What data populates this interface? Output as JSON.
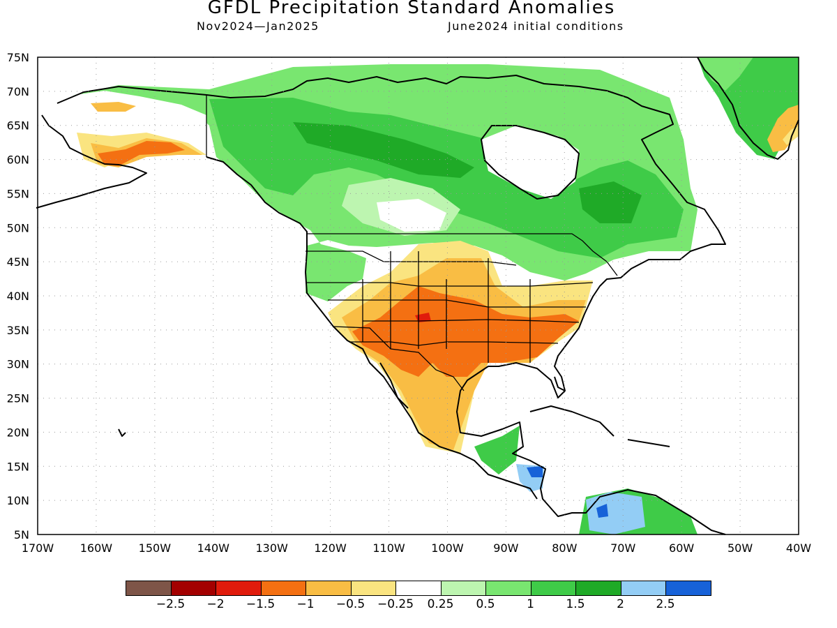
{
  "title": "GFDL Precipitation Standard Anomalies",
  "subtitle_left": "Nov2024—Jan2025",
  "subtitle_right": "June2024 initial conditions",
  "axes": {
    "lon_labels": [
      "170W",
      "160W",
      "150W",
      "140W",
      "130W",
      "120W",
      "110W",
      "100W",
      "90W",
      "80W",
      "70W",
      "60W",
      "50W",
      "40W"
    ],
    "lat_labels": [
      "75N",
      "70N",
      "65N",
      "60N",
      "55N",
      "50N",
      "45N",
      "40N",
      "35N",
      "30N",
      "25N",
      "20N",
      "15N",
      "10N",
      "5N"
    ],
    "lon_range": [
      -170,
      -40
    ],
    "lat_range": [
      5,
      75
    ],
    "grid": "dotted"
  },
  "legend": {
    "colors": [
      "#7e5548",
      "#a30000",
      "#e01b0c",
      "#f47012",
      "#f9bd44",
      "#fae480",
      "#ffffff",
      "#bdf5b0",
      "#79e670",
      "#3fcb48",
      "#1faa27",
      "#93cdf5",
      "#1762d8"
    ],
    "labels": [
      "−2.5",
      "−2",
      "−1.5",
      "−1",
      "−0.5",
      "−0.25",
      "0.25",
      "0.5",
      "1",
      "1.5",
      "2",
      "2.5"
    ]
  },
  "colors": {
    "wet_light": "#bdf5b0",
    "wet_mid": "#79e670",
    "wet_strong": "#3fcb48",
    "wet_heavy": "#1faa27",
    "dry_light": "#fae480",
    "dry_mid": "#f9bd44",
    "dry_strong": "#f47012",
    "very_wet_light": "#93cdf5",
    "very_wet": "#1762d8"
  }
}
